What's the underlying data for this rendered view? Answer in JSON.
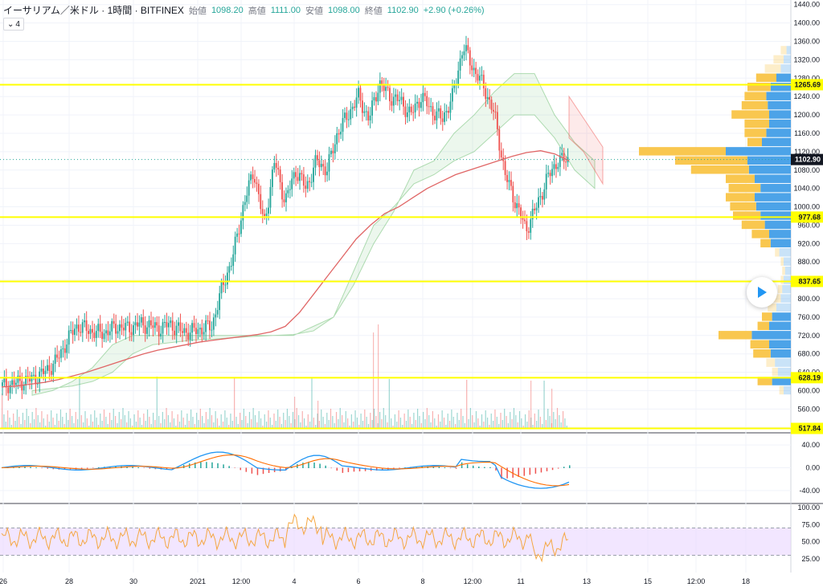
{
  "legend": {
    "symbol": "イーサリアム／米ドル · 1時間 · BITFINEX",
    "open_label": "始値",
    "open": "1098.20",
    "high_label": "高値",
    "high": "1111.00",
    "low_label": "安値",
    "low": "1098.00",
    "close_label": "終値",
    "close": "1102.90",
    "change": "+2.90 (+0.26%)",
    "collapse_label": "4"
  },
  "colors": {
    "up": "#26a69a",
    "down": "#ef5350",
    "ma": "#e06666",
    "hline": "#ffff00",
    "price_tag": "#131722",
    "vp_up": "#f9c74f",
    "vp_down": "#4ca3e8",
    "rsi_band": "#e9d5ff",
    "rsi_line": "#f5a742",
    "macd": "#2196f3",
    "signal": "#ff6d00"
  },
  "price_axis": {
    "ticks": [
      "1440.00",
      "1400.00",
      "1360.00",
      "1320.00",
      "1280.00",
      "1240.00",
      "1200.00",
      "1160.00",
      "1120.00",
      "1080.00",
      "1040.00",
      "1000.00",
      "960.00",
      "920.00",
      "880.00",
      "840.00",
      "800.00",
      "760.00",
      "720.00",
      "680.00",
      "640.00",
      "600.00",
      "560.00",
      "520.00"
    ],
    "current": "1102.90"
  },
  "levels": [
    {
      "value": 1265.69,
      "label": "1265.69"
    },
    {
      "value": 977.68,
      "label": "977.68"
    },
    {
      "value": 837.65,
      "label": "837.65"
    },
    {
      "value": 628.19,
      "label": "628.19"
    },
    {
      "value": 517.84,
      "label": "517.84"
    }
  ],
  "macd_axis": {
    "ticks": [
      "40.00",
      "0.00",
      "-40.00"
    ]
  },
  "rsi_axis": {
    "ticks": [
      "100.00",
      "75.00",
      "50.00",
      "25.00"
    ]
  },
  "time_axis": [
    "26",
    "28",
    "30",
    "2021",
    "12:00",
    "4",
    "6",
    "8",
    "12:00",
    "11",
    "13",
    "15",
    "12:00",
    "18"
  ],
  "chart_data": {
    "type": "candlestick",
    "y_range": [
      510,
      1450
    ],
    "close_path": [
      610,
      615,
      620,
      626,
      640,
      660,
      700,
      740,
      735,
      725,
      728,
      740,
      735,
      745,
      742,
      735,
      745,
      730,
      728,
      735,
      740,
      825,
      890,
      1000,
      1080,
      960,
      1100,
      1010,
      1080,
      1040,
      1100,
      1080,
      1160,
      1200,
      1240,
      1190,
      1270,
      1240,
      1230,
      1200,
      1240,
      1210,
      1190,
      1240,
      1350,
      1300,
      1260,
      1200,
      1070,
      1010,
      950,
      1000,
      1060,
      1100,
      1103
    ],
    "ma_path": [
      608,
      610,
      614,
      618,
      624,
      632,
      640,
      650,
      660,
      670,
      680,
      688,
      694,
      700,
      706,
      710,
      714,
      718,
      722,
      728,
      740,
      770,
      810,
      850,
      890,
      930,
      960,
      985,
      1000,
      1020,
      1040,
      1055,
      1070,
      1080,
      1090,
      1100,
      1110,
      1118,
      1122,
      1115,
      1100
    ],
    "volume_profile": [
      {
        "price": 1340,
        "buy": 8,
        "sell": 6
      },
      {
        "price": 1320,
        "buy": 14,
        "sell": 10
      },
      {
        "price": 1300,
        "buy": 22,
        "sell": 14
      },
      {
        "price": 1280,
        "buy": 28,
        "sell": 20
      },
      {
        "price": 1260,
        "buy": 32,
        "sell": 28
      },
      {
        "price": 1240,
        "buy": 30,
        "sell": 34
      },
      {
        "price": 1220,
        "buy": 36,
        "sell": 32
      },
      {
        "price": 1200,
        "buy": 52,
        "sell": 30
      },
      {
        "price": 1180,
        "buy": 34,
        "sell": 30
      },
      {
        "price": 1160,
        "buy": 30,
        "sell": 34
      },
      {
        "price": 1140,
        "buy": 20,
        "sell": 40
      },
      {
        "price": 1120,
        "buy": 120,
        "sell": 90
      },
      {
        "price": 1100,
        "buy": 100,
        "sell": 60
      },
      {
        "price": 1080,
        "buy": 80,
        "sell": 58
      },
      {
        "price": 1060,
        "buy": 40,
        "sell": 50
      },
      {
        "price": 1040,
        "buy": 44,
        "sell": 42
      },
      {
        "price": 1020,
        "buy": 40,
        "sell": 50
      },
      {
        "price": 1000,
        "buy": 36,
        "sell": 48
      },
      {
        "price": 980,
        "buy": 38,
        "sell": 42
      },
      {
        "price": 960,
        "buy": 32,
        "sell": 36
      },
      {
        "price": 940,
        "buy": 24,
        "sell": 30
      },
      {
        "price": 920,
        "buy": 14,
        "sell": 28
      },
      {
        "price": 900,
        "buy": 6,
        "sell": 16
      },
      {
        "price": 880,
        "buy": 4,
        "sell": 10
      },
      {
        "price": 860,
        "buy": 4,
        "sell": 8
      },
      {
        "price": 840,
        "buy": 4,
        "sell": 10
      },
      {
        "price": 820,
        "buy": 6,
        "sell": 12
      },
      {
        "price": 800,
        "buy": 10,
        "sell": 14
      },
      {
        "price": 780,
        "buy": 12,
        "sell": 20
      },
      {
        "price": 760,
        "buy": 14,
        "sell": 26
      },
      {
        "price": 740,
        "buy": 16,
        "sell": 30
      },
      {
        "price": 720,
        "buy": 46,
        "sell": 54
      },
      {
        "price": 700,
        "buy": 26,
        "sell": 30
      },
      {
        "price": 680,
        "buy": 24,
        "sell": 28
      },
      {
        "price": 660,
        "buy": 12,
        "sell": 22
      },
      {
        "price": 640,
        "buy": 8,
        "sell": 18
      },
      {
        "price": 620,
        "buy": 20,
        "sell": 26
      },
      {
        "price": 600,
        "buy": 6,
        "sell": 10
      }
    ]
  }
}
